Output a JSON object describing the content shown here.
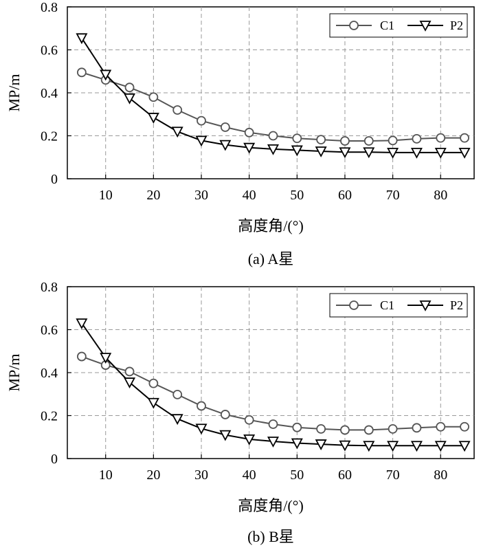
{
  "chart_data": [
    {
      "type": "line",
      "caption": "(a) A星",
      "xlabel": "高度角/(°)",
      "ylabel": "MP/m",
      "xlim": [
        2,
        87
      ],
      "ylim": [
        0,
        0.8
      ],
      "xticks": [
        10,
        20,
        30,
        40,
        50,
        60,
        70,
        80
      ],
      "yticks": [
        0,
        0.2,
        0.4,
        0.6,
        0.8
      ],
      "yticklabels": [
        "0",
        "0.2",
        "0.4",
        "0.6",
        "0.8"
      ],
      "grid": true,
      "legend_position": "top-right",
      "x": [
        5,
        10,
        15,
        20,
        25,
        30,
        35,
        40,
        45,
        50,
        55,
        60,
        65,
        70,
        75,
        80,
        85
      ],
      "series": [
        {
          "name": "C1",
          "color": "#555555",
          "marker": "circle",
          "values": [
            0.495,
            0.46,
            0.425,
            0.38,
            0.32,
            0.27,
            0.24,
            0.215,
            0.2,
            0.188,
            0.182,
            0.176,
            0.176,
            0.178,
            0.186,
            0.19,
            0.19
          ]
        },
        {
          "name": "P2",
          "color": "#000000",
          "marker": "triangle-down",
          "values": [
            0.655,
            0.485,
            0.375,
            0.285,
            0.22,
            0.178,
            0.158,
            0.145,
            0.138,
            0.133,
            0.128,
            0.124,
            0.124,
            0.122,
            0.122,
            0.122,
            0.122
          ]
        }
      ]
    },
    {
      "type": "line",
      "caption": "(b) B星",
      "xlabel": "高度角/(°)",
      "ylabel": "MP/m",
      "xlim": [
        2,
        87
      ],
      "ylim": [
        0,
        0.8
      ],
      "xticks": [
        10,
        20,
        30,
        40,
        50,
        60,
        70,
        80
      ],
      "yticks": [
        0,
        0.2,
        0.4,
        0.6,
        0.8
      ],
      "yticklabels": [
        "0",
        "0.2",
        "0.4",
        "0.6",
        "0.8"
      ],
      "grid": true,
      "legend_position": "top-right",
      "x": [
        5,
        10,
        15,
        20,
        25,
        30,
        35,
        40,
        45,
        50,
        55,
        60,
        65,
        70,
        75,
        80,
        85
      ],
      "series": [
        {
          "name": "C1",
          "color": "#555555",
          "marker": "circle",
          "values": [
            0.475,
            0.435,
            0.405,
            0.35,
            0.298,
            0.245,
            0.205,
            0.18,
            0.16,
            0.145,
            0.138,
            0.133,
            0.133,
            0.138,
            0.143,
            0.148,
            0.148
          ]
        },
        {
          "name": "P2",
          "color": "#000000",
          "marker": "triangle-down",
          "values": [
            0.63,
            0.47,
            0.355,
            0.26,
            0.185,
            0.14,
            0.11,
            0.09,
            0.08,
            0.072,
            0.067,
            0.062,
            0.06,
            0.06,
            0.06,
            0.06,
            0.06
          ]
        }
      ]
    }
  ]
}
